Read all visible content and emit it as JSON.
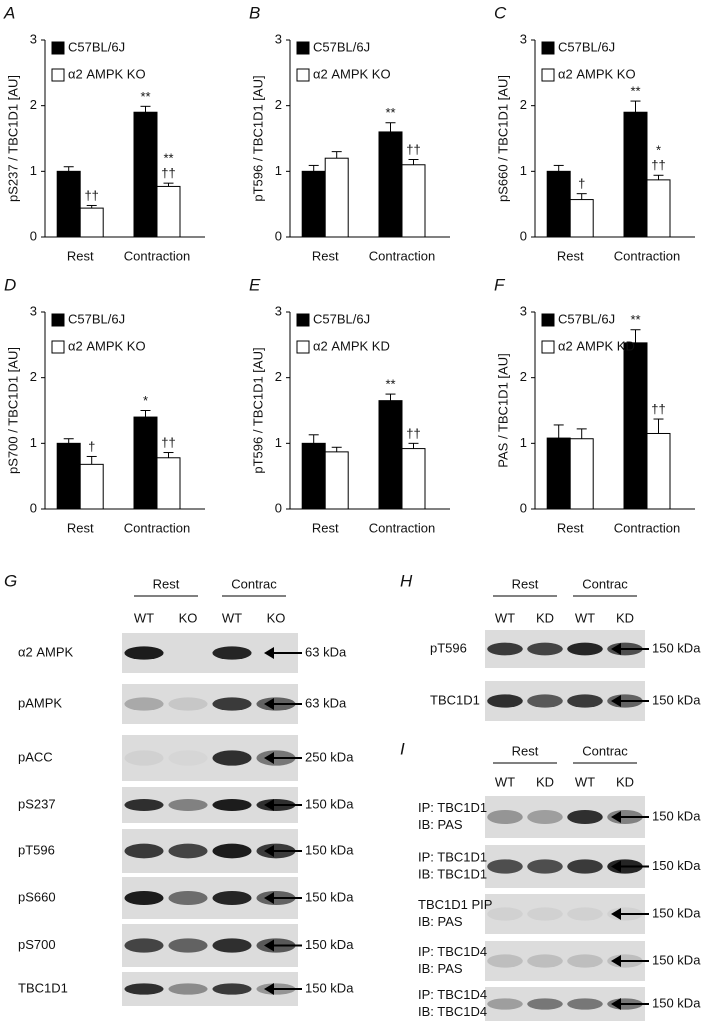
{
  "chart_data": [
    {
      "type": "bar",
      "panel": "A",
      "ylabel": "pS237 / TBC1D1 [AU]",
      "categories": [
        "Rest",
        "Contraction"
      ],
      "ylim": [
        0,
        3
      ],
      "yticks": [
        0,
        1,
        2,
        3
      ],
      "series": [
        {
          "name": "C57BL/6J",
          "color": "#000000",
          "values": [
            1.0,
            1.9
          ],
          "errors": [
            0.07,
            0.09
          ],
          "sig": [
            [],
            [
              "**"
            ]
          ]
        },
        {
          "name": "α2 AMPK KO",
          "color": "#ffffff",
          "values": [
            0.44,
            0.77
          ],
          "errors": [
            0.04,
            0.05
          ],
          "sig": [
            [
              "††"
            ],
            [
              "††",
              "**"
            ]
          ]
        }
      ]
    },
    {
      "type": "bar",
      "panel": "B",
      "ylabel": "pT596 / TBC1D1 [AU]",
      "categories": [
        "Rest",
        "Contraction"
      ],
      "ylim": [
        0,
        3
      ],
      "yticks": [
        0,
        1,
        2,
        3
      ],
      "series": [
        {
          "name": "C57BL/6J",
          "color": "#000000",
          "values": [
            1.0,
            1.6
          ],
          "errors": [
            0.09,
            0.14
          ],
          "sig": [
            [],
            [
              "**"
            ]
          ]
        },
        {
          "name": "α2 AMPK KO",
          "color": "#ffffff",
          "values": [
            1.2,
            1.1
          ],
          "errors": [
            0.1,
            0.08
          ],
          "sig": [
            [],
            [
              "††"
            ]
          ]
        }
      ]
    },
    {
      "type": "bar",
      "panel": "C",
      "ylabel": "pS660 / TBC1D1 [AU]",
      "categories": [
        "Rest",
        "Contraction"
      ],
      "ylim": [
        0,
        3
      ],
      "yticks": [
        0,
        1,
        2,
        3
      ],
      "series": [
        {
          "name": "C57BL/6J",
          "color": "#000000",
          "values": [
            1.0,
            1.9
          ],
          "errors": [
            0.09,
            0.17
          ],
          "sig": [
            [],
            [
              "**"
            ]
          ]
        },
        {
          "name": "α2 AMPK KO",
          "color": "#ffffff",
          "values": [
            0.57,
            0.87
          ],
          "errors": [
            0.09,
            0.07
          ],
          "sig": [
            [
              "†"
            ],
            [
              "††",
              "*"
            ]
          ]
        }
      ]
    },
    {
      "type": "bar",
      "panel": "D",
      "ylabel": "pS700 / TBC1D1 [AU]",
      "categories": [
        "Rest",
        "Contraction"
      ],
      "ylim": [
        0,
        3
      ],
      "yticks": [
        0,
        1,
        2,
        3
      ],
      "series": [
        {
          "name": "C57BL/6J",
          "color": "#000000",
          "values": [
            1.0,
            1.4
          ],
          "errors": [
            0.07,
            0.1
          ],
          "sig": [
            [],
            [
              "*"
            ]
          ]
        },
        {
          "name": "α2 AMPK KO",
          "color": "#ffffff",
          "values": [
            0.68,
            0.78
          ],
          "errors": [
            0.12,
            0.08
          ],
          "sig": [
            [
              "†"
            ],
            [
              "††"
            ]
          ]
        }
      ]
    },
    {
      "type": "bar",
      "panel": "E",
      "ylabel": "pT596 / TBC1D1 [AU]",
      "categories": [
        "Rest",
        "Contraction"
      ],
      "ylim": [
        0,
        3
      ],
      "yticks": [
        0,
        1,
        2,
        3
      ],
      "series": [
        {
          "name": "C57BL/6J",
          "color": "#000000",
          "values": [
            1.0,
            1.65
          ],
          "errors": [
            0.13,
            0.1
          ],
          "sig": [
            [],
            [
              "**"
            ]
          ]
        },
        {
          "name": "α2 AMPK KD",
          "color": "#ffffff",
          "values": [
            0.87,
            0.92
          ],
          "errors": [
            0.07,
            0.08
          ],
          "sig": [
            [],
            [
              "††"
            ]
          ]
        }
      ]
    },
    {
      "type": "bar",
      "panel": "F",
      "ylabel": "PAS / TBC1D1 [AU]",
      "categories": [
        "Rest",
        "Contraction"
      ],
      "ylim": [
        0,
        3
      ],
      "yticks": [
        0,
        1,
        2,
        3
      ],
      "series": [
        {
          "name": "C57BL/6J",
          "color": "#000000",
          "values": [
            1.08,
            2.53
          ],
          "errors": [
            0.2,
            0.2
          ],
          "sig": [
            [],
            [
              "**"
            ]
          ]
        },
        {
          "name": "α2 AMPK KD",
          "color": "#ffffff",
          "values": [
            1.07,
            1.15
          ],
          "errors": [
            0.15,
            0.22
          ],
          "sig": [
            [],
            [
              "††"
            ]
          ]
        }
      ]
    }
  ],
  "blots": [
    {
      "panel": "G",
      "groups": [
        "Rest",
        "Contrac"
      ],
      "lanes": [
        "WT",
        "KO",
        "WT",
        "KO"
      ],
      "rows": [
        {
          "label": [
            "α2 AMPK"
          ],
          "size": "63 kDa"
        },
        {
          "label": [
            "pAMPK"
          ],
          "size": "63 kDa"
        },
        {
          "label": [
            "pACC"
          ],
          "size": "250 kDa"
        },
        {
          "label": [
            "pS237"
          ],
          "size": "150 kDa"
        },
        {
          "label": [
            "pT596"
          ],
          "size": "150 kDa"
        },
        {
          "label": [
            "pS660"
          ],
          "size": "150 kDa"
        },
        {
          "label": [
            "pS700"
          ],
          "size": "150 kDa"
        },
        {
          "label": [
            "TBC1D1"
          ],
          "size": "150 kDa"
        }
      ]
    },
    {
      "panel": "H",
      "groups": [
        "Rest",
        "Contrac"
      ],
      "lanes": [
        "WT",
        "KD",
        "WT",
        "KD"
      ],
      "rows": [
        {
          "label": [
            "pT596"
          ],
          "size": "150 kDa"
        },
        {
          "label": [
            "TBC1D1"
          ],
          "size": "150 kDa"
        }
      ]
    },
    {
      "panel": "I",
      "groups": [
        "Rest",
        "Contrac"
      ],
      "lanes": [
        "WT",
        "KD",
        "WT",
        "KD"
      ],
      "rows": [
        {
          "label": [
            "IP: TBC1D1",
            "IB: PAS"
          ],
          "size": "150 kDa"
        },
        {
          "label": [
            "IP: TBC1D1",
            "IB: TBC1D1"
          ],
          "size": "150 kDa"
        },
        {
          "label": [
            "TBC1D1 PIP",
            "IB: PAS"
          ],
          "size": "150 kDa"
        },
        {
          "label": [
            "IP: TBC1D4",
            "IB: PAS"
          ],
          "size": "150 kDa"
        },
        {
          "label": [
            "IP: TBC1D4",
            "IB: TBC1D4"
          ],
          "size": "150 kDa"
        }
      ]
    }
  ]
}
